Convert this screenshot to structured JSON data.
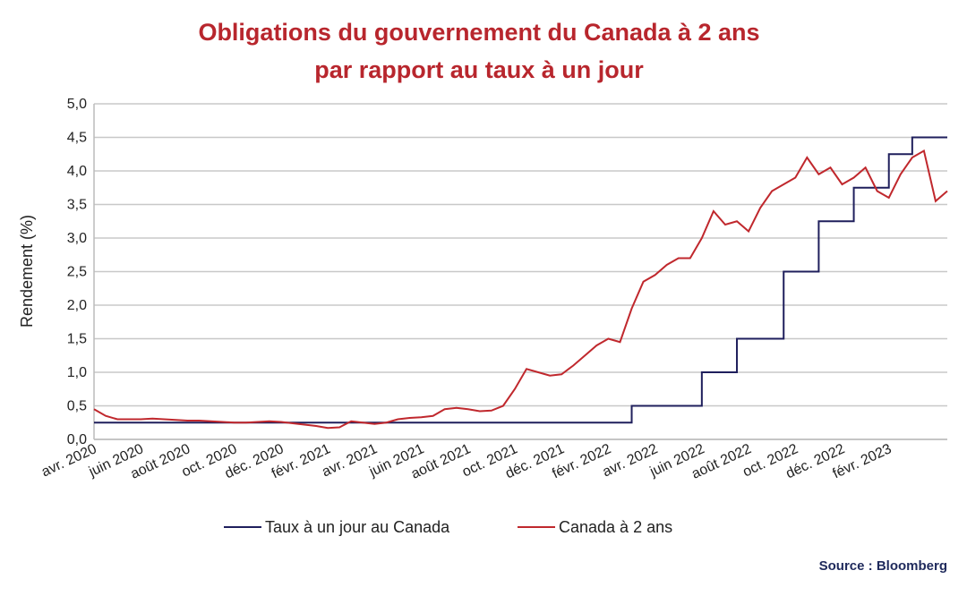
{
  "chart_data": {
    "type": "line",
    "title": [
      "Obligations du gouvernement du Canada à 2 ans",
      "par rapport au taux à un jour"
    ],
    "y_label": "Rendement (%)",
    "source": "Source : Bloomberg",
    "categories": [
      "avr. 2020",
      null,
      null,
      null,
      "juin 2020",
      null,
      null,
      null,
      "août 2020",
      null,
      null,
      null,
      "oct. 2020",
      null,
      null,
      null,
      "déc. 2020",
      null,
      null,
      null,
      "févr. 2021",
      null,
      null,
      null,
      "avr. 2021",
      null,
      null,
      null,
      "juin 2021",
      null,
      null,
      null,
      "août 2021",
      null,
      null,
      null,
      "oct. 2021",
      null,
      null,
      null,
      "déc. 2021",
      null,
      null,
      null,
      "févr. 2022",
      null,
      null,
      null,
      "avr. 2022",
      null,
      null,
      null,
      "juin 2022",
      null,
      null,
      null,
      "août 2022",
      null,
      null,
      null,
      "oct. 2022",
      null,
      null,
      null,
      "déc. 2022",
      null,
      null,
      null,
      "févr. 2023",
      null,
      null,
      null,
      null,
      null
    ],
    "series": [
      {
        "name": "Taux à un jour au Canada",
        "color": "#1f1f5c",
        "step": true,
        "values": [
          0.25,
          0.25,
          0.25,
          0.25,
          0.25,
          0.25,
          0.25,
          0.25,
          0.25,
          0.25,
          0.25,
          0.25,
          0.25,
          0.25,
          0.25,
          0.25,
          0.25,
          0.25,
          0.25,
          0.25,
          0.25,
          0.25,
          0.25,
          0.25,
          0.25,
          0.25,
          0.25,
          0.25,
          0.25,
          0.25,
          0.25,
          0.25,
          0.25,
          0.25,
          0.25,
          0.25,
          0.25,
          0.25,
          0.25,
          0.25,
          0.25,
          0.25,
          0.25,
          0.25,
          0.25,
          0.25,
          0.5,
          0.5,
          0.5,
          0.5,
          0.5,
          0.5,
          1.0,
          1.0,
          1.0,
          1.5,
          1.5,
          1.5,
          1.5,
          2.5,
          2.5,
          2.5,
          3.25,
          3.25,
          3.25,
          3.75,
          3.75,
          3.75,
          4.25,
          4.25,
          4.5,
          4.5,
          4.5,
          4.5
        ]
      },
      {
        "name": "Canada à 2 ans",
        "color": "#c0282d",
        "step": false,
        "values": [
          0.45,
          0.35,
          0.3,
          0.3,
          0.3,
          0.31,
          0.3,
          0.29,
          0.28,
          0.28,
          0.27,
          0.26,
          0.25,
          0.25,
          0.26,
          0.27,
          0.26,
          0.24,
          0.22,
          0.2,
          0.17,
          0.18,
          0.27,
          0.25,
          0.23,
          0.25,
          0.3,
          0.32,
          0.33,
          0.35,
          0.45,
          0.47,
          0.45,
          0.42,
          0.43,
          0.5,
          0.75,
          1.05,
          1.0,
          0.95,
          0.97,
          1.1,
          1.25,
          1.4,
          1.5,
          1.45,
          1.95,
          2.35,
          2.45,
          2.6,
          2.7,
          2.7,
          3.0,
          3.4,
          3.2,
          3.25,
          3.1,
          3.45,
          3.7,
          3.8,
          3.9,
          4.2,
          3.95,
          4.05,
          3.8,
          3.9,
          4.05,
          3.7,
          3.6,
          3.95,
          4.2,
          4.3,
          3.55,
          3.7
        ]
      }
    ],
    "ylim": [
      0,
      5
    ],
    "yticks": [
      {
        "value": 0,
        "label": "0,0"
      },
      {
        "value": 0.5,
        "label": "0,5"
      },
      {
        "value": 1,
        "label": "1,0"
      },
      {
        "value": 1.5,
        "label": "1,5"
      },
      {
        "value": 2,
        "label": "2,0"
      },
      {
        "value": 2.5,
        "label": "2,5"
      },
      {
        "value": 3,
        "label": "3,0"
      },
      {
        "value": 3.5,
        "label": "3,5"
      },
      {
        "value": 4,
        "label": "4,0"
      },
      {
        "value": 4.5,
        "label": "4,5"
      },
      {
        "value": 5,
        "label": "5,0"
      }
    ],
    "grid": true
  }
}
